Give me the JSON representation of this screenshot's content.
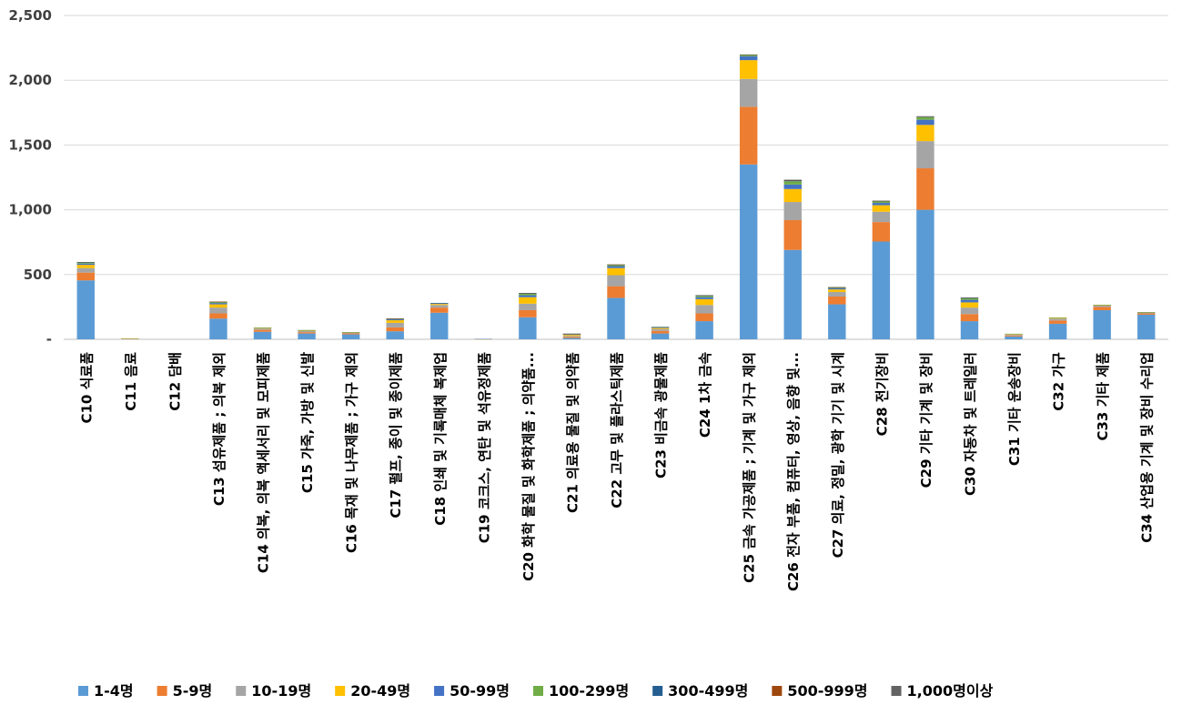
{
  "chart_data": {
    "type": "bar",
    "stacked": true,
    "title": "",
    "xlabel": "",
    "ylabel": "",
    "ylim": [
      0,
      2500
    ],
    "y_ticks": [
      "-",
      "500",
      "1,000",
      "1,500",
      "2,000",
      "2,500"
    ],
    "grid": "horizontal",
    "legend_position": "bottom",
    "categories": [
      "C10 식료품",
      "C11 음료",
      "C12 담배",
      "C13 섬유제품 ; 의복 제외",
      "C14 의복, 의복 액세서리 및 모피제품",
      "C15 가죽, 가방 및 신발",
      "C16 목재 및 나무제품 ; 가구 제외",
      "C17 펄프, 종이 및 종이제품",
      "C18 인쇄 및 기록매체 복제업",
      "C19 코크스, 연탄 및 석유정제품",
      "C20 화학 물질 및 화학제품 ; 의약품...",
      "C21 의료용 물질 및 의약품",
      "C22 고무 및 플라스틱제품",
      "C23 비금속 광물제품",
      "C24 1차 금속",
      "C25 금속 가공제품 ; 기계 및 가구 제외",
      "C26 전자 부품, 컴퓨터, 영상, 음향 및...",
      "C27 의료, 정밀, 광학 기기 및 시계",
      "C28 전기장비",
      "C29 기타 기계 및 장비",
      "C30 자동차 및 트레일러",
      "C31 기타 운송장비",
      "C32 가구",
      "C33 기타 제품",
      "C34 산업용 기계 및 장비 수리업"
    ],
    "series": [
      {
        "name": "1-4명",
        "color": "#5b9bd5",
        "values": [
          455,
          5,
          0,
          160,
          58,
          45,
          38,
          62,
          205,
          0,
          170,
          10,
          320,
          45,
          140,
          1350,
          690,
          270,
          755,
          1000,
          140,
          22,
          120,
          225,
          190
        ]
      },
      {
        "name": "5-9명",
        "color": "#ed7d31",
        "values": [
          60,
          1,
          0,
          40,
          15,
          10,
          8,
          30,
          40,
          0,
          55,
          8,
          90,
          20,
          60,
          445,
          230,
          60,
          150,
          320,
          55,
          8,
          25,
          25,
          10
        ]
      },
      {
        "name": "10-19명",
        "color": "#a5a5a5",
        "values": [
          35,
          1,
          0,
          45,
          10,
          8,
          5,
          35,
          20,
          1,
          50,
          8,
          85,
          15,
          65,
          215,
          140,
          35,
          80,
          210,
          50,
          6,
          15,
          10,
          5
        ]
      },
      {
        "name": "20-49명",
        "color": "#ffc000",
        "values": [
          25,
          1,
          0,
          25,
          5,
          5,
          3,
          20,
          8,
          1,
          50,
          8,
          55,
          8,
          45,
          145,
          100,
          20,
          50,
          125,
          40,
          4,
          6,
          4,
          3
        ]
      },
      {
        "name": "50-99명",
        "color": "#4472c4",
        "values": [
          10,
          0,
          0,
          10,
          2,
          2,
          1,
          7,
          4,
          1,
          15,
          4,
          15,
          4,
          15,
          30,
          35,
          8,
          18,
          40,
          20,
          2,
          2,
          2,
          1
        ]
      },
      {
        "name": "100-299명",
        "color": "#70ad47",
        "values": [
          8,
          0,
          0,
          8,
          1,
          2,
          1,
          5,
          3,
          0,
          12,
          3,
          10,
          3,
          10,
          10,
          25,
          6,
          12,
          20,
          12,
          1,
          1,
          1,
          1
        ]
      },
      {
        "name": "300-499명",
        "color": "#255e91",
        "values": [
          2,
          0,
          0,
          2,
          0,
          0,
          0,
          1,
          1,
          0,
          3,
          1,
          2,
          1,
          3,
          2,
          6,
          2,
          3,
          4,
          3,
          0,
          0,
          0,
          0
        ]
      },
      {
        "name": "500-999명",
        "color": "#9e480e",
        "values": [
          1,
          0,
          0,
          1,
          0,
          0,
          0,
          1,
          0,
          0,
          2,
          1,
          1,
          0,
          2,
          1,
          3,
          1,
          1,
          2,
          2,
          0,
          0,
          0,
          0
        ]
      },
      {
        "name": "1,000명이상",
        "color": "#636363",
        "values": [
          1,
          0,
          0,
          0,
          0,
          0,
          0,
          0,
          0,
          0,
          1,
          1,
          0,
          0,
          1,
          1,
          3,
          1,
          1,
          1,
          1,
          0,
          0,
          0,
          0
        ]
      }
    ]
  }
}
